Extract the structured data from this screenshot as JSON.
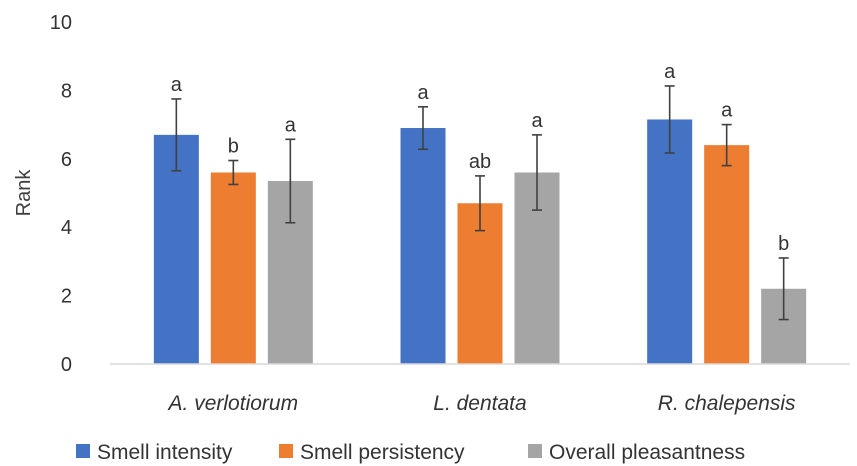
{
  "chart_data": {
    "type": "bar",
    "title": "",
    "xlabel": "",
    "ylabel": "Rank",
    "ylim": [
      0,
      10
    ],
    "yticks": [
      "0",
      "2",
      "4",
      "6",
      "8",
      "10"
    ],
    "categories": [
      "A. verlotiorum",
      "L. dentata",
      "R. chalepensis"
    ],
    "series": [
      {
        "name": "Smell intensity",
        "color": "#4472C4",
        "values": [
          6.7,
          6.9,
          7.15
        ],
        "errors": [
          1.05,
          0.62,
          0.98
        ],
        "letters": [
          "a",
          "a",
          "a"
        ]
      },
      {
        "name": "Smell persistency",
        "color": "#ED7D31",
        "values": [
          5.6,
          4.7,
          6.4
        ],
        "errors": [
          0.35,
          0.8,
          0.6
        ],
        "letters": [
          "b",
          "ab",
          "a"
        ]
      },
      {
        "name": "Overall pleasantness",
        "color": "#A5A5A5",
        "values": [
          5.35,
          5.6,
          2.2
        ],
        "errors": [
          1.22,
          1.1,
          0.9
        ],
        "letters": [
          "a",
          "a",
          "b"
        ]
      }
    ],
    "grid": false,
    "legend_position": "bottom"
  }
}
